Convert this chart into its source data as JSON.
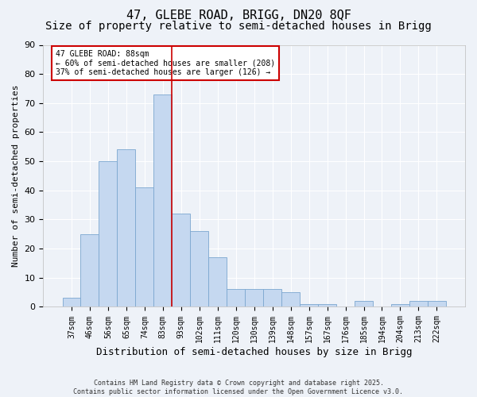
{
  "title1": "47, GLEBE ROAD, BRIGG, DN20 8QF",
  "title2": "Size of property relative to semi-detached houses in Brigg",
  "xlabel": "Distribution of semi-detached houses by size in Brigg",
  "ylabel": "Number of semi-detached properties",
  "categories": [
    "37sqm",
    "46sqm",
    "56sqm",
    "65sqm",
    "74sqm",
    "83sqm",
    "93sqm",
    "102sqm",
    "111sqm",
    "120sqm",
    "130sqm",
    "139sqm",
    "148sqm",
    "157sqm",
    "167sqm",
    "176sqm",
    "185sqm",
    "194sqm",
    "204sqm",
    "213sqm",
    "222sqm"
  ],
  "values": [
    3,
    25,
    50,
    54,
    41,
    73,
    32,
    26,
    17,
    6,
    6,
    6,
    5,
    1,
    1,
    0,
    2,
    0,
    1,
    2,
    2
  ],
  "bar_color": "#c5d8f0",
  "bar_edge_color": "#7ba7d0",
  "vline_index": 5,
  "annotation_title": "47 GLEBE ROAD: 88sqm",
  "annotation_line1": "← 60% of semi-detached houses are smaller (208)",
  "annotation_line2": "37% of semi-detached houses are larger (126) →",
  "annotation_box_color": "#ffffff",
  "annotation_box_edge": "#cc0000",
  "vline_color": "#cc0000",
  "ylim": [
    0,
    90
  ],
  "yticks": [
    0,
    10,
    20,
    30,
    40,
    50,
    60,
    70,
    80,
    90
  ],
  "footer1": "Contains HM Land Registry data © Crown copyright and database right 2025.",
  "footer2": "Contains public sector information licensed under the Open Government Licence v3.0.",
  "bg_color": "#eef2f8",
  "plot_bg_color": "#eef2f8",
  "grid_color": "#ffffff",
  "title_fontsize": 11,
  "subtitle_fontsize": 10,
  "ylabel_fontsize": 8,
  "xlabel_fontsize": 9,
  "tick_fontsize": 7,
  "annotation_fontsize": 7,
  "footer_fontsize": 6
}
